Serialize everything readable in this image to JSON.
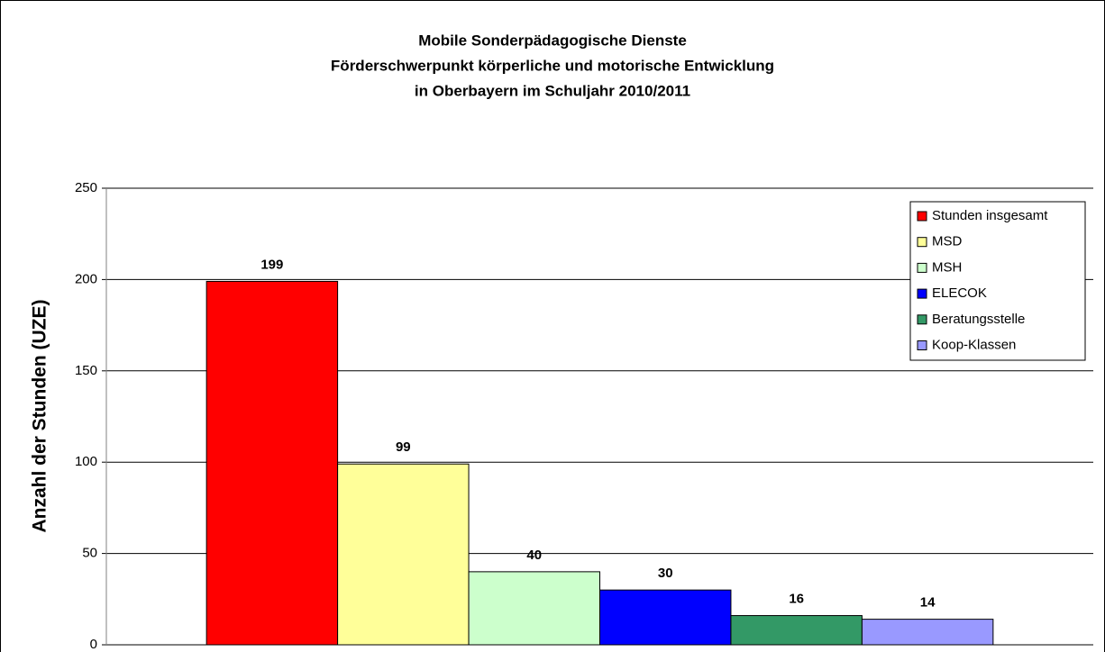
{
  "chart_data": {
    "type": "bar",
    "title": [
      "Mobile Sonderpädagogische Dienste",
      "Förderschwerpunkt körperliche und motorische Entwicklung",
      "in Oberbayern im Schuljahr 2010/2011"
    ],
    "y_label": "Anzahl der Stunden (UZE)",
    "series": [
      {
        "name": "Stunden insgesamt",
        "color": "#ff0000",
        "values": [
          199
        ]
      },
      {
        "name": "MSD",
        "color": "#ffff99",
        "values": [
          99
        ]
      },
      {
        "name": "MSH",
        "color": "#ccffcc",
        "values": [
          40
        ]
      },
      {
        "name": "ELECOK",
        "color": "#0000ff",
        "values": [
          30
        ]
      },
      {
        "name": "Beratungsstelle",
        "color": "#339966",
        "values": [
          16
        ]
      },
      {
        "name": "Koop-Klassen",
        "color": "#9999ff",
        "values": [
          14
        ]
      }
    ],
    "ylim": [
      0,
      250
    ],
    "yticks": [
      0,
      50,
      100,
      150,
      200,
      250
    ],
    "grid": true,
    "legend": "top-right"
  }
}
